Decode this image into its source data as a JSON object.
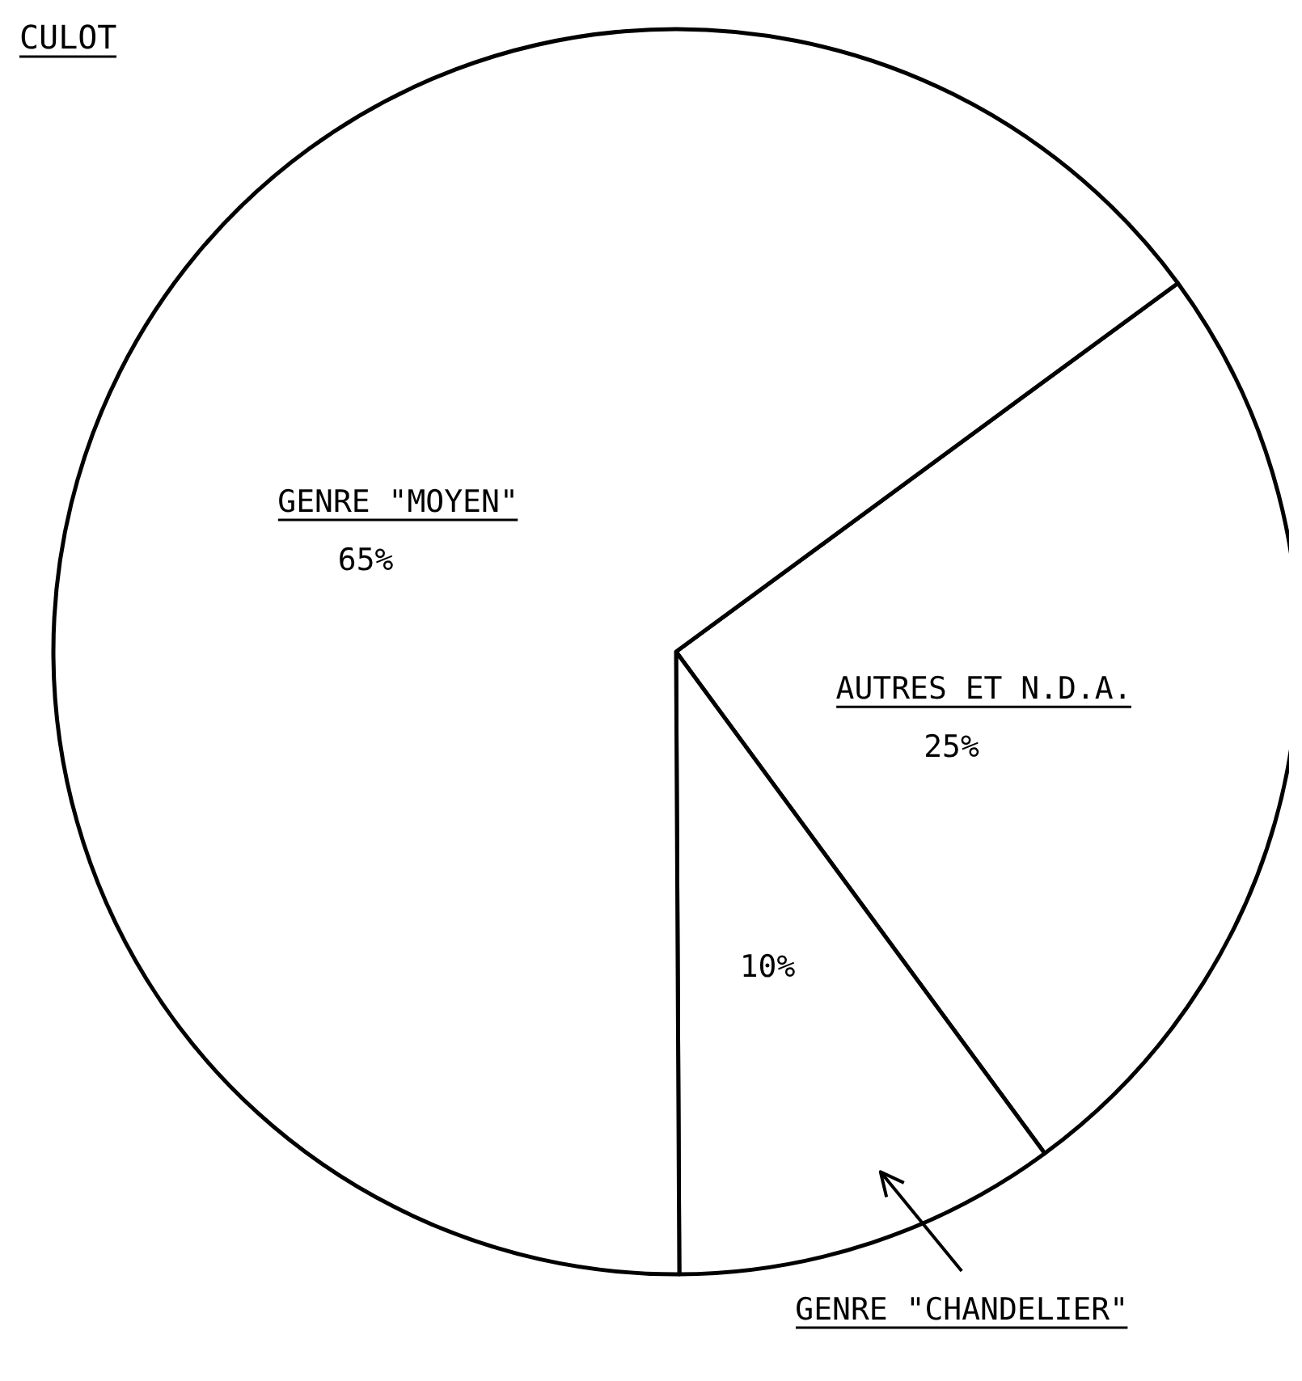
{
  "chart_data": {
    "type": "pie",
    "title": "CULOT",
    "categories": [
      "AUTRES ET N.D.A.",
      "GENRE \"CHANDELIER\"",
      "GENRE \"MOYEN\""
    ],
    "values": [
      25,
      10,
      65
    ],
    "colors": [
      "#ffffff",
      "#ffffff",
      "#ffffff"
    ],
    "value_labels": [
      "25%",
      "10%",
      "65%"
    ]
  }
}
